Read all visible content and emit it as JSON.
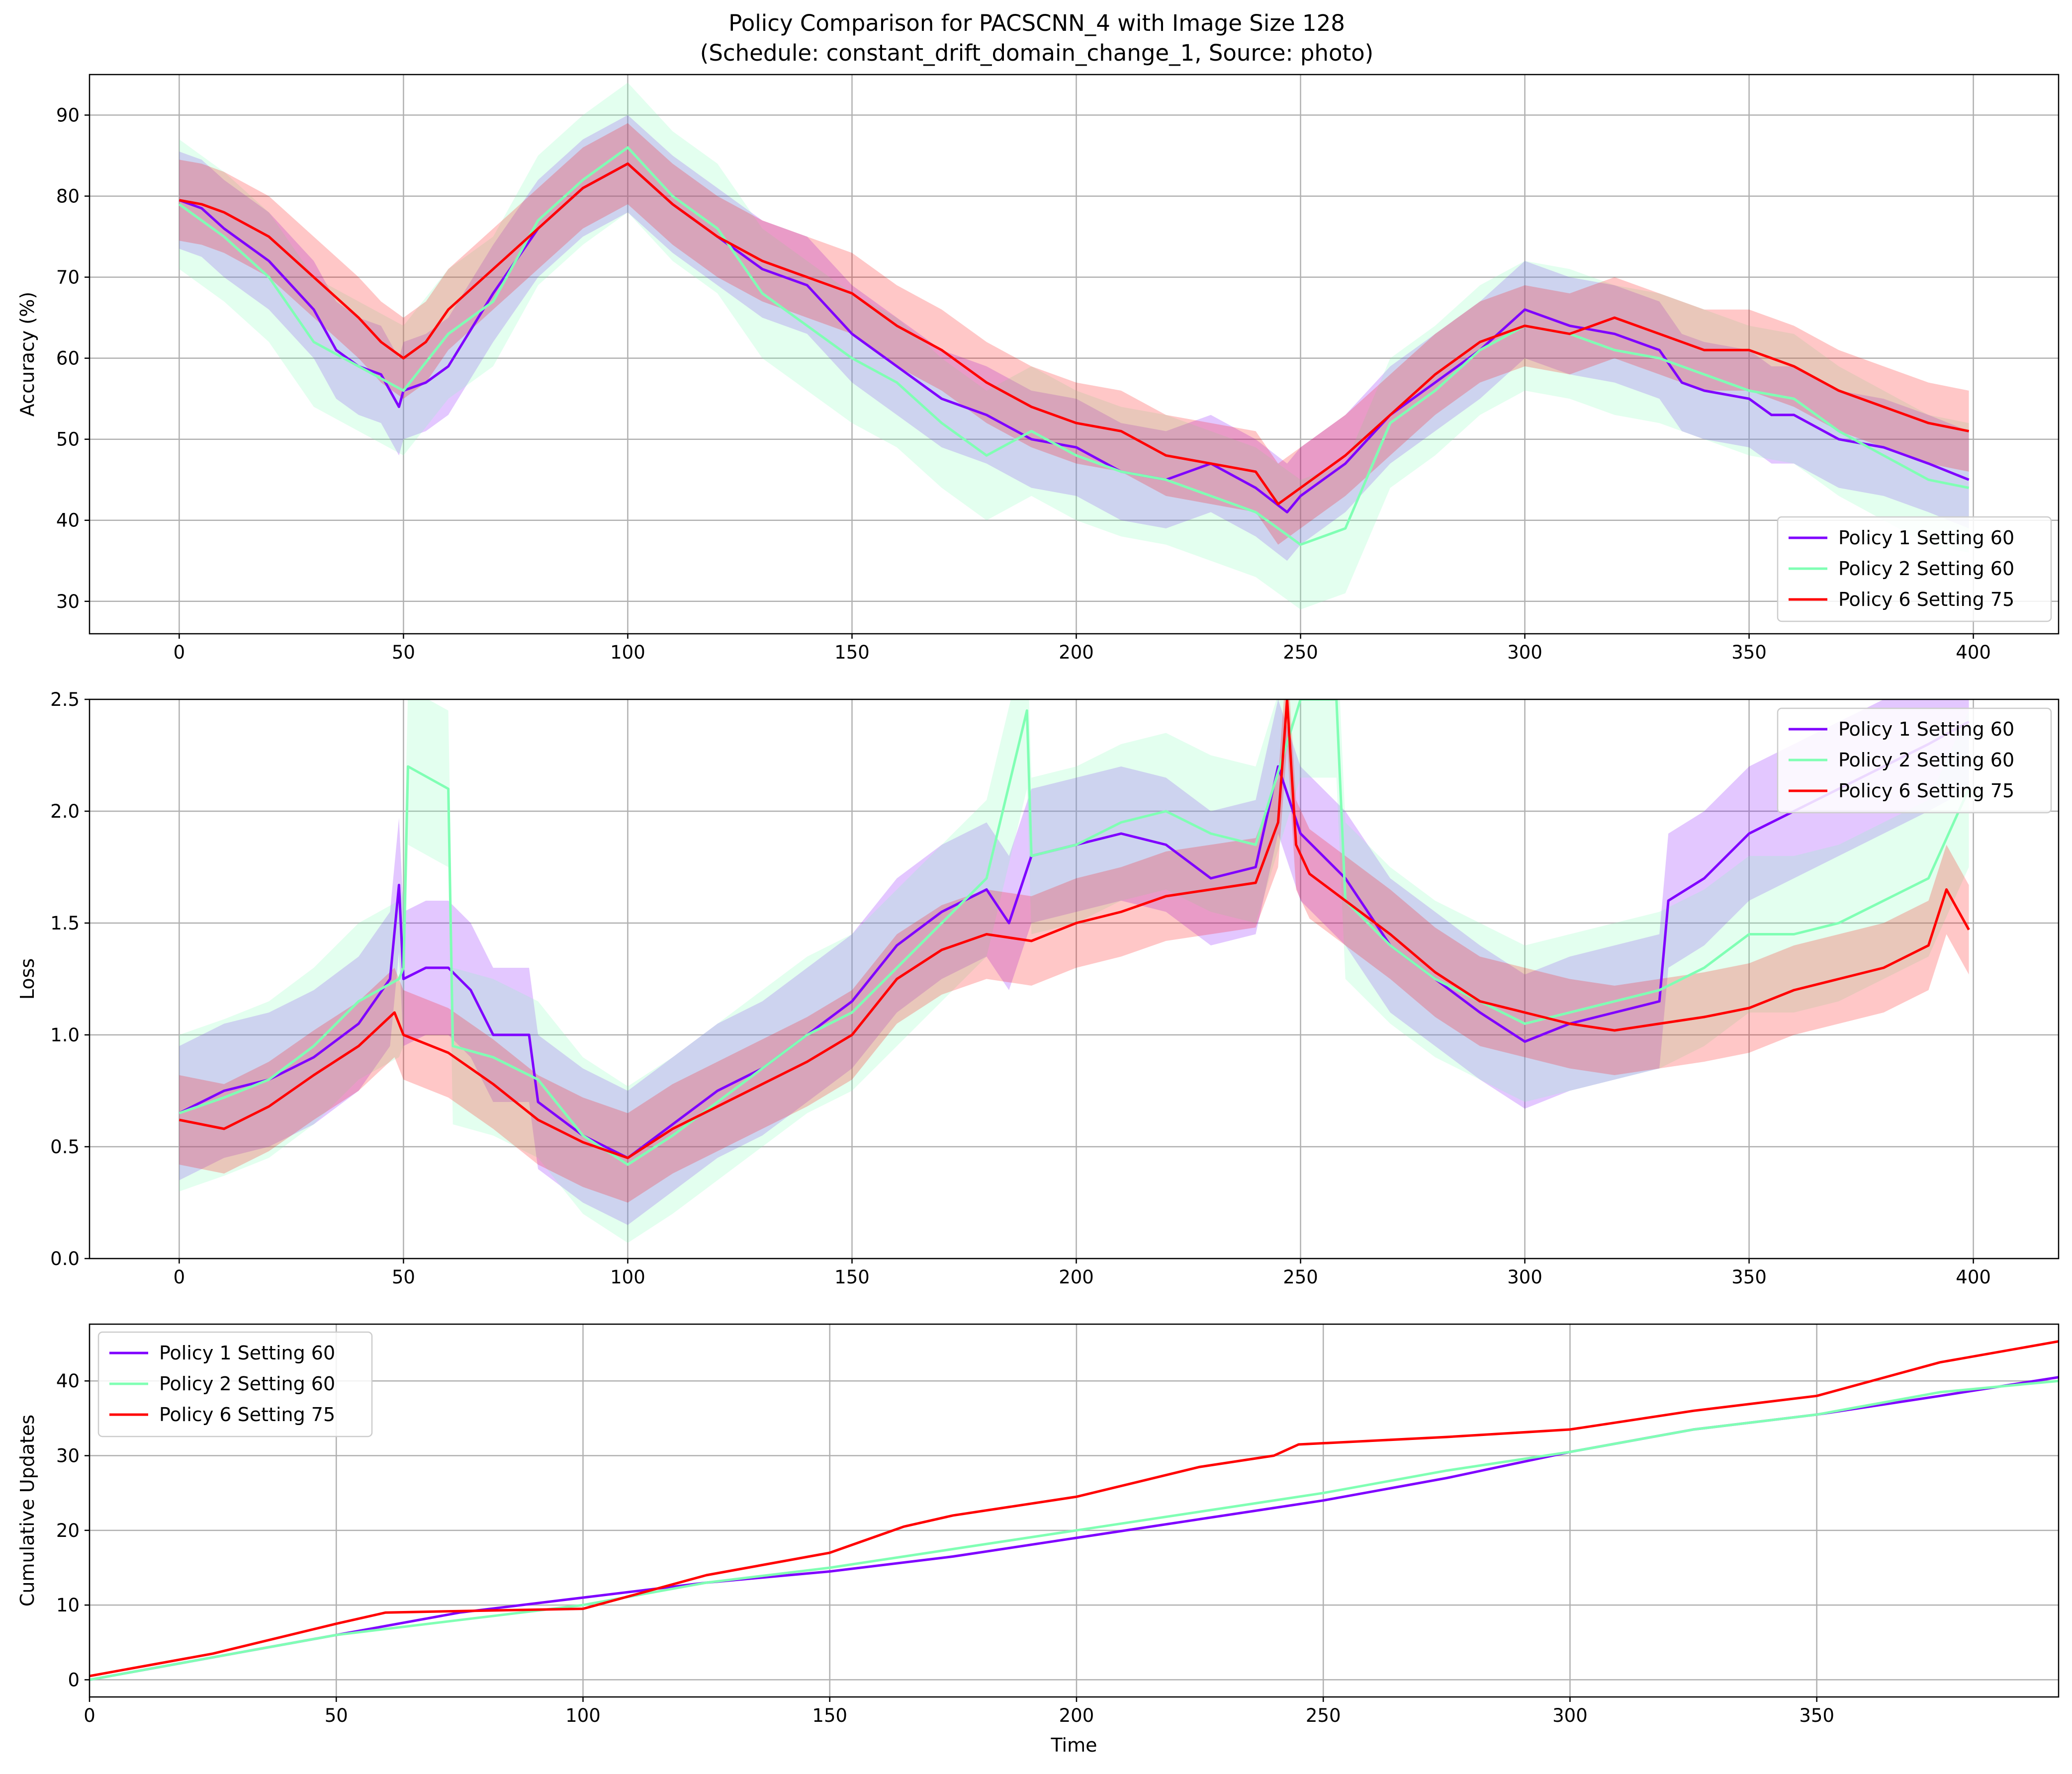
{
  "figure": {
    "title_line1": "Policy Comparison for PACSCNN_4 with Image Size 128",
    "title_line2": "(Schedule: constant_drift_domain_change_1, Source: photo)"
  },
  "colors": {
    "policy1": "#7f00ff",
    "policy2": "#80ffb4",
    "policy6": "#ff0000",
    "grid": "#b0b0b0"
  },
  "chart_data": [
    {
      "id": "accuracy",
      "type": "line",
      "title": "",
      "xlabel": "",
      "ylabel": "Accuracy (%)",
      "xlim": [
        -20,
        419
      ],
      "ylim": [
        26,
        95
      ],
      "xticks": [
        0,
        50,
        100,
        150,
        200,
        250,
        300,
        350,
        400
      ],
      "yticks": [
        30,
        40,
        50,
        60,
        70,
        80,
        90
      ],
      "grid": true,
      "legend_position": "lower right",
      "band": true,
      "series": [
        {
          "name": "Policy 1 Setting 60",
          "color": "#7f00ff",
          "x": [
            0,
            5,
            10,
            20,
            30,
            35,
            40,
            45,
            49,
            50,
            55,
            60,
            70,
            80,
            90,
            100,
            110,
            120,
            130,
            140,
            150,
            160,
            170,
            180,
            190,
            200,
            210,
            220,
            230,
            240,
            247,
            250,
            260,
            270,
            280,
            290,
            300,
            310,
            320,
            330,
            335,
            340,
            350,
            355,
            360,
            370,
            380,
            390,
            399
          ],
          "y": [
            79.5,
            78.5,
            76,
            72,
            66,
            61,
            59,
            58,
            54,
            56,
            57,
            59,
            68,
            76,
            81,
            84,
            79,
            75,
            71,
            69,
            63,
            59,
            55,
            53,
            50,
            49,
            46,
            45,
            47,
            44,
            41,
            43,
            47,
            53,
            57,
            61,
            66,
            64,
            63,
            61,
            57,
            56,
            55,
            53,
            53,
            50,
            49,
            47,
            45
          ],
          "spread": 6
        },
        {
          "name": "Policy 2 Setting 60",
          "color": "#80ffb4",
          "x": [
            0,
            10,
            20,
            30,
            40,
            50,
            60,
            70,
            80,
            90,
            100,
            110,
            120,
            130,
            140,
            150,
            160,
            170,
            180,
            190,
            200,
            210,
            220,
            230,
            240,
            250,
            260,
            270,
            280,
            290,
            300,
            310,
            320,
            330,
            340,
            350,
            360,
            370,
            380,
            390,
            399
          ],
          "y": [
            79,
            75,
            70,
            62,
            59,
            56,
            63,
            67,
            77,
            82,
            86,
            80,
            76,
            68,
            64,
            60,
            57,
            52,
            48,
            51,
            48,
            46,
            45,
            43,
            41,
            37,
            39,
            52,
            56,
            61,
            64,
            63,
            61,
            60,
            58,
            56,
            55,
            51,
            48,
            45,
            44
          ],
          "spread": 8
        },
        {
          "name": "Policy 6 Setting 75",
          "color": "#ff0000",
          "x": [
            0,
            5,
            10,
            20,
            30,
            40,
            45,
            50,
            55,
            60,
            70,
            80,
            90,
            100,
            110,
            120,
            130,
            140,
            150,
            160,
            170,
            180,
            190,
            200,
            210,
            220,
            230,
            240,
            245,
            250,
            260,
            270,
            280,
            290,
            300,
            310,
            320,
            330,
            340,
            350,
            360,
            370,
            380,
            390,
            399
          ],
          "y": [
            79.5,
            79,
            78,
            75,
            70,
            65,
            62,
            60,
            62,
            66,
            71,
            76,
            81,
            84,
            79,
            75,
            72,
            70,
            68,
            64,
            61,
            57,
            54,
            52,
            51,
            48,
            47,
            46,
            42,
            44,
            48,
            53,
            58,
            62,
            64,
            63,
            65,
            63,
            61,
            61,
            59,
            56,
            54,
            52,
            51
          ],
          "spread": 5
        }
      ]
    },
    {
      "id": "loss",
      "type": "line",
      "title": "",
      "xlabel": "",
      "ylabel": "Loss",
      "xlim": [
        -20,
        419
      ],
      "ylim": [
        0,
        2.5
      ],
      "xticks": [
        0,
        50,
        100,
        150,
        200,
        250,
        300,
        350,
        400
      ],
      "yticks": [
        0.0,
        0.5,
        1.0,
        1.5,
        2.0,
        2.5
      ],
      "grid": true,
      "legend_position": "upper right",
      "band": true,
      "series": [
        {
          "name": "Policy 1 Setting 60",
          "color": "#7f00ff",
          "x": [
            0,
            10,
            20,
            30,
            40,
            47,
            49,
            50,
            55,
            60,
            65,
            70,
            78,
            80,
            90,
            100,
            110,
            120,
            130,
            140,
            150,
            160,
            170,
            180,
            185,
            190,
            200,
            210,
            220,
            230,
            240,
            245,
            250,
            260,
            270,
            280,
            290,
            300,
            310,
            320,
            330,
            332,
            340,
            350,
            360,
            370,
            380,
            390,
            399
          ],
          "y": [
            0.65,
            0.75,
            0.8,
            0.9,
            1.05,
            1.25,
            1.67,
            1.25,
            1.3,
            1.3,
            1.2,
            1.0,
            1.0,
            0.7,
            0.55,
            0.45,
            0.6,
            0.75,
            0.85,
            1.0,
            1.15,
            1.4,
            1.55,
            1.65,
            1.5,
            1.8,
            1.85,
            1.9,
            1.85,
            1.7,
            1.75,
            2.2,
            1.9,
            1.7,
            1.4,
            1.25,
            1.1,
            0.97,
            1.05,
            1.1,
            1.15,
            1.6,
            1.7,
            1.9,
            2.0,
            2.1,
            2.2,
            2.3,
            2.4
          ],
          "spread": 0.3
        },
        {
          "name": "Policy 2 Setting 60",
          "color": "#80ffb4",
          "x": [
            0,
            10,
            20,
            30,
            40,
            49,
            50,
            51,
            60,
            61,
            70,
            80,
            90,
            100,
            110,
            120,
            130,
            140,
            150,
            160,
            170,
            180,
            189,
            190,
            200,
            210,
            220,
            230,
            240,
            250,
            258,
            260,
            270,
            280,
            290,
            300,
            310,
            320,
            330,
            340,
            350,
            360,
            370,
            380,
            390,
            399
          ],
          "y": [
            0.65,
            0.72,
            0.8,
            0.95,
            1.15,
            1.25,
            1.3,
            2.2,
            2.1,
            0.95,
            0.9,
            0.8,
            0.55,
            0.42,
            0.55,
            0.7,
            0.85,
            1.0,
            1.1,
            1.3,
            1.5,
            1.7,
            2.45,
            1.8,
            1.85,
            1.95,
            2.0,
            1.9,
            1.85,
            2.5,
            2.5,
            1.6,
            1.4,
            1.25,
            1.15,
            1.05,
            1.1,
            1.15,
            1.2,
            1.3,
            1.45,
            1.45,
            1.5,
            1.6,
            1.7,
            2.1
          ],
          "spread": 0.35
        },
        {
          "name": "Policy 6 Setting 75",
          "color": "#ff0000",
          "x": [
            0,
            10,
            20,
            30,
            40,
            48,
            50,
            60,
            70,
            80,
            90,
            100,
            110,
            120,
            130,
            140,
            150,
            160,
            170,
            180,
            190,
            200,
            210,
            220,
            230,
            240,
            245,
            247,
            249,
            252,
            260,
            270,
            280,
            290,
            300,
            310,
            320,
            330,
            340,
            350,
            360,
            370,
            380,
            390,
            394,
            399
          ],
          "y": [
            0.62,
            0.58,
            0.68,
            0.82,
            0.95,
            1.1,
            1.0,
            0.92,
            0.78,
            0.62,
            0.52,
            0.45,
            0.58,
            0.68,
            0.78,
            0.88,
            1.0,
            1.25,
            1.38,
            1.45,
            1.42,
            1.5,
            1.55,
            1.62,
            1.65,
            1.68,
            1.95,
            2.5,
            1.85,
            1.72,
            1.6,
            1.45,
            1.28,
            1.15,
            1.1,
            1.05,
            1.02,
            1.05,
            1.08,
            1.12,
            1.2,
            1.25,
            1.3,
            1.4,
            1.65,
            1.47
          ],
          "spread": 0.2
        }
      ]
    },
    {
      "id": "updates",
      "type": "line",
      "title": "",
      "xlabel": "Time",
      "ylabel": "Cumulative Updates",
      "xlim": [
        0,
        399
      ],
      "ylim": [
        -2.3,
        47.6
      ],
      "xticks": [
        0,
        50,
        100,
        150,
        200,
        250,
        300,
        350
      ],
      "yticks": [
        0,
        10,
        20,
        30,
        40
      ],
      "grid": true,
      "legend_position": "upper left",
      "band": false,
      "series": [
        {
          "name": "Policy 1 Setting 60",
          "color": "#7f00ff",
          "x": [
            0,
            25,
            50,
            75,
            100,
            125,
            150,
            175,
            200,
            225,
            250,
            275,
            300,
            325,
            350,
            375,
            399
          ],
          "y": [
            0,
            3,
            6,
            9,
            11,
            13,
            14.5,
            16.5,
            19,
            21.5,
            24,
            27,
            30.5,
            33.5,
            35.5,
            38,
            40.5
          ]
        },
        {
          "name": "Policy 2 Setting 60",
          "color": "#80ffb4",
          "x": [
            0,
            25,
            50,
            75,
            100,
            125,
            150,
            175,
            200,
            225,
            250,
            275,
            300,
            325,
            350,
            375,
            399
          ],
          "y": [
            0,
            3,
            6,
            8,
            10,
            13,
            15,
            17.5,
            20,
            22.5,
            25,
            28,
            30.5,
            33.5,
            35.5,
            38.5,
            40
          ]
        },
        {
          "name": "Policy 6 Setting 75",
          "color": "#ff0000",
          "x": [
            0,
            25,
            50,
            60,
            75,
            100,
            125,
            150,
            165,
            175,
            200,
            225,
            240,
            245,
            275,
            300,
            325,
            350,
            375,
            399
          ],
          "y": [
            0.5,
            3.5,
            7.5,
            9,
            9.2,
            9.5,
            14,
            17,
            20.5,
            22,
            24.5,
            28.5,
            30,
            31.5,
            32.5,
            33.5,
            36,
            38,
            42.5,
            45.3
          ]
        }
      ]
    }
  ]
}
